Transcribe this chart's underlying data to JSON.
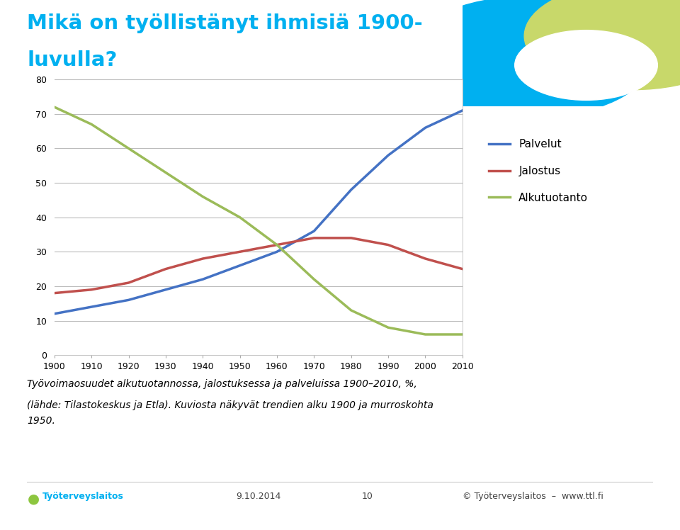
{
  "years": [
    1900,
    1910,
    1920,
    1930,
    1940,
    1950,
    1960,
    1970,
    1980,
    1990,
    2000,
    2010
  ],
  "palvelut": [
    12,
    14,
    16,
    19,
    22,
    26,
    30,
    36,
    48,
    58,
    66,
    71
  ],
  "jalostus": [
    18,
    19,
    21,
    25,
    28,
    30,
    32,
    34,
    34,
    32,
    28,
    25
  ],
  "alkutuotanto": [
    72,
    67,
    60,
    53,
    46,
    40,
    32,
    22,
    13,
    8,
    6,
    6
  ],
  "palvelut_color": "#4472C4",
  "jalostus_color": "#C0504D",
  "alkutuotanto_color": "#9BBB59",
  "title_line1": "Mikä on työllistänyt ihmisiä 1900-",
  "title_line2": "luvulla?",
  "title_color": "#00B0F0",
  "caption_line1": "Työvoimaosuudet alkutuotannossa, jalostuksessa ja palveluissa 1900–2010, %,",
  "caption_line2": "(lähde: Tilastokeskus ja Etla). Kuviosta näkyvät trendien alku 1900 ja murroskohta",
  "caption_line3": "1950.",
  "legend_palvelut": "Palvelut",
  "legend_jalostus": "Jalostus",
  "legend_alkutuotanto": "Alkutuotanto",
  "ylim": [
    0,
    80
  ],
  "yticks": [
    0,
    10,
    20,
    30,
    40,
    50,
    60,
    70,
    80
  ],
  "line_width": 2.5,
  "bg_color": "#FFFFFF",
  "teal_color": "#00B0F0",
  "green_deco_color": "#C8D86A",
  "footer_date": "9.10.2014",
  "footer_page": "10",
  "footer_copy": "© Työterveyslaitos  –  www.ttl.fi"
}
